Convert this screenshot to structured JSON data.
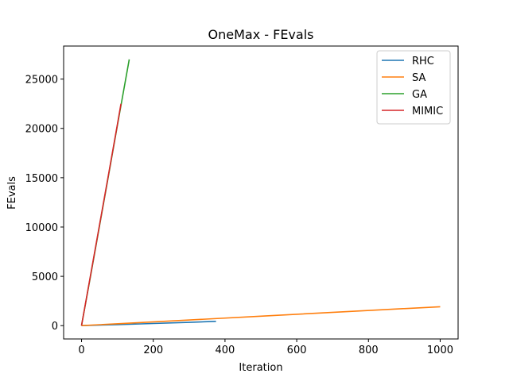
{
  "chart_data": {
    "type": "line",
    "title": "OneMax - FEvals",
    "xlabel": "Iteration",
    "ylabel": "FEvals",
    "xlim": [
      -50,
      1050
    ],
    "ylim": [
      -1350,
      28350
    ],
    "xticks": [
      0,
      200,
      400,
      600,
      800,
      1000
    ],
    "yticks": [
      0,
      5000,
      10000,
      15000,
      20000,
      25000
    ],
    "grid": false,
    "legend_position": "top-right",
    "series": [
      {
        "name": "RHC",
        "color": "#1f77b4",
        "x": [
          0,
          100,
          200,
          300,
          375
        ],
        "y": [
          0,
          110,
          220,
          330,
          440
        ]
      },
      {
        "name": "SA",
        "color": "#ff7f0e",
        "x": [
          0,
          250,
          500,
          750,
          1000
        ],
        "y": [
          0,
          480,
          960,
          1440,
          1920
        ]
      },
      {
        "name": "GA",
        "color": "#2ca02c",
        "x": [
          0,
          25,
          50,
          75,
          100,
          133
        ],
        "y": [
          0,
          5000,
          10100,
          15200,
          20300,
          27000
        ]
      },
      {
        "name": "MIMIC",
        "color": "#d62728",
        "x": [
          0,
          25,
          50,
          75,
          100,
          110
        ],
        "y": [
          0,
          5100,
          10200,
          15300,
          20400,
          22500
        ]
      }
    ]
  }
}
